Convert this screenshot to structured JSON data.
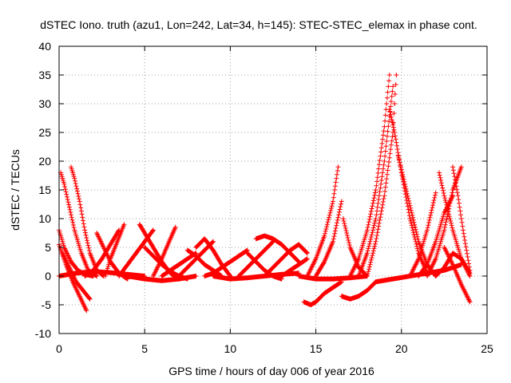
{
  "chart_data": {
    "type": "scatter",
    "title": "dSTEC Iono. truth (azu1, Lon=242, Lat=34, h=145): STEC-STEC_elemax in phase cont.",
    "xlabel": "GPS time / hours of day 006 of year 2016",
    "ylabel": "dSTEC  / TECUs",
    "xlim": [
      0,
      25
    ],
    "ylim": [
      -10,
      40
    ],
    "x_ticks": [
      "0",
      "5",
      "10",
      "15",
      "20",
      "25"
    ],
    "y_ticks": [
      "-10",
      "-5",
      "0",
      "5",
      "10",
      "15",
      "20",
      "25",
      "30",
      "35",
      "40"
    ],
    "grid": true,
    "marker": "+",
    "color": "#ff0000",
    "series": [
      {
        "x": [
          0.0,
          0.3,
          0.7,
          1.1,
          1.5,
          2.0
        ],
        "y": [
          8.0,
          5.0,
          2.5,
          1.0,
          0.3,
          0.0
        ]
      },
      {
        "x": [
          0.0,
          0.4,
          0.8,
          1.2,
          1.6
        ],
        "y": [
          5.5,
          2.0,
          -1.0,
          -3.5,
          -6.0
        ]
      },
      {
        "x": [
          0.1,
          0.3,
          0.6,
          0.9,
          1.3,
          1.7,
          2.2
        ],
        "y": [
          18.0,
          16.0,
          12.0,
          8.0,
          4.0,
          1.0,
          0.0
        ]
      },
      {
        "x": [
          0.7,
          0.9,
          1.2,
          1.5,
          1.8,
          2.2,
          2.6
        ],
        "y": [
          19.0,
          17.0,
          13.0,
          8.0,
          4.0,
          1.0,
          0.0
        ]
      },
      {
        "x": [
          0.2,
          0.6,
          1.0,
          1.4,
          1.8
        ],
        "y": [
          4.0,
          1.5,
          -1.0,
          -2.5,
          -4.0
        ]
      },
      {
        "x": [
          0.0,
          1.0,
          2.0,
          3.0,
          4.0,
          5.0
        ],
        "y": [
          0.0,
          0.5,
          0.8,
          0.6,
          0.3,
          0.0
        ]
      },
      {
        "x": [
          1.5,
          2.0,
          2.5,
          3.0,
          3.5
        ],
        "y": [
          0.0,
          1.0,
          3.0,
          5.5,
          8.0
        ]
      },
      {
        "x": [
          2.2,
          2.6,
          3.0,
          3.5,
          4.0
        ],
        "y": [
          7.5,
          5.0,
          2.5,
          0.5,
          -0.5
        ]
      },
      {
        "x": [
          2.7,
          3.0,
          3.4,
          3.8
        ],
        "y": [
          0.0,
          3.0,
          6.0,
          9.0
        ]
      },
      {
        "x": [
          3.5,
          4.0,
          4.5,
          5.0,
          5.5
        ],
        "y": [
          0.0,
          2.0,
          4.0,
          6.0,
          8.0
        ]
      },
      {
        "x": [
          4.7,
          5.0,
          5.5,
          6.0,
          6.5,
          7.0
        ],
        "y": [
          9.0,
          7.5,
          5.0,
          2.5,
          0.5,
          -0.5
        ]
      },
      {
        "x": [
          5.0,
          5.5,
          6.0,
          6.5,
          7.0,
          7.5
        ],
        "y": [
          5.0,
          3.5,
          2.0,
          0.8,
          0.0,
          -0.5
        ]
      },
      {
        "x": [
          4.0,
          5.0,
          6.0,
          7.0,
          8.0
        ],
        "y": [
          0.0,
          -0.5,
          -0.8,
          -0.5,
          0.0
        ]
      },
      {
        "x": [
          5.5,
          6.0,
          6.5,
          6.8
        ],
        "y": [
          0.0,
          3.0,
          6.5,
          8.5
        ]
      },
      {
        "x": [
          6.0,
          6.5,
          7.0,
          7.5,
          8.0
        ],
        "y": [
          0.0,
          1.0,
          2.0,
          3.0,
          4.0
        ]
      },
      {
        "x": [
          7.0,
          7.5,
          8.0,
          8.5,
          9.0
        ],
        "y": [
          0.0,
          1.5,
          3.0,
          4.5,
          6.0
        ]
      },
      {
        "x": [
          7.5,
          8.0,
          8.5,
          9.0,
          9.5
        ],
        "y": [
          4.5,
          3.5,
          2.0,
          1.0,
          0.0
        ]
      },
      {
        "x": [
          8.0,
          8.5,
          9.0,
          9.5,
          10.0
        ],
        "y": [
          5.0,
          6.5,
          4.5,
          2.0,
          0.0
        ]
      },
      {
        "x": [
          8.5,
          9.0,
          9.5,
          10.0,
          10.5,
          11.0
        ],
        "y": [
          0.0,
          0.5,
          1.5,
          2.5,
          3.5,
          4.5
        ]
      },
      {
        "x": [
          9.0,
          10.0,
          11.0,
          12.0,
          13.0,
          14.0
        ],
        "y": [
          0.0,
          -0.5,
          -0.3,
          0.0,
          0.3,
          0.5
        ]
      },
      {
        "x": [
          10.5,
          11.0,
          11.5,
          12.0,
          12.5
        ],
        "y": [
          0.0,
          1.5,
          3.0,
          4.5,
          6.0
        ]
      },
      {
        "x": [
          11.0,
          11.5,
          12.0,
          12.5,
          13.0
        ],
        "y": [
          4.0,
          2.5,
          1.0,
          0.0,
          -0.5
        ]
      },
      {
        "x": [
          11.5,
          12.0,
          12.5,
          13.0,
          13.5,
          14.0
        ],
        "y": [
          6.5,
          7.0,
          6.5,
          5.5,
          4.0,
          2.5
        ]
      },
      {
        "x": [
          12.0,
          12.5,
          13.0,
          13.5,
          14.0,
          14.5
        ],
        "y": [
          0.0,
          1.5,
          3.0,
          4.5,
          5.5,
          4.0
        ]
      },
      {
        "x": [
          13.0,
          13.5,
          14.0,
          14.5
        ],
        "y": [
          0.0,
          1.0,
          2.0,
          3.0
        ]
      },
      {
        "x": [
          14.3,
          14.7,
          15.0,
          15.5,
          16.0,
          16.5
        ],
        "y": [
          -4.5,
          -5.0,
          -4.5,
          -3.0,
          -2.0,
          -1.0
        ]
      },
      {
        "x": [
          14.5,
          15.0,
          15.5,
          16.0,
          16.3
        ],
        "y": [
          0.0,
          3.0,
          7.0,
          13.0,
          19.0
        ]
      },
      {
        "x": [
          15.0,
          15.5,
          16.0,
          16.5
        ],
        "y": [
          0.0,
          2.5,
          6.0,
          13.0
        ]
      },
      {
        "x": [
          14.0,
          15.0,
          16.0,
          17.0,
          18.0
        ],
        "y": [
          0.0,
          -0.5,
          -0.5,
          -0.3,
          0.0
        ]
      },
      {
        "x": [
          16.5,
          17.0,
          17.5,
          18.0,
          18.5
        ],
        "y": [
          -3.5,
          -4.0,
          -3.5,
          -2.5,
          -1.0
        ]
      },
      {
        "x": [
          16.6,
          17.0,
          17.5,
          18.0
        ],
        "y": [
          10.0,
          5.0,
          1.5,
          0.0
        ]
      },
      {
        "x": [
          17.0,
          17.5,
          18.0,
          18.5,
          19.0,
          19.3
        ],
        "y": [
          0.0,
          3.0,
          8.0,
          15.0,
          26.0,
          35.0
        ]
      },
      {
        "x": [
          17.5,
          18.0,
          18.5,
          19.0,
          19.5
        ],
        "y": [
          0.0,
          4.0,
          10.0,
          20.0,
          33.0
        ]
      },
      {
        "x": [
          18.0,
          18.5,
          19.0,
          19.5,
          19.7
        ],
        "y": [
          0.0,
          6.0,
          14.0,
          25.0,
          35.0
        ]
      },
      {
        "x": [
          19.3,
          19.6,
          20.0,
          20.5,
          21.0,
          21.5
        ],
        "y": [
          29.0,
          25.0,
          18.0,
          10.0,
          4.0,
          0.5
        ]
      },
      {
        "x": [
          19.8,
          20.2,
          20.6,
          21.0,
          21.5,
          22.0
        ],
        "y": [
          21.0,
          16.0,
          11.0,
          6.0,
          2.0,
          0.0
        ]
      },
      {
        "x": [
          20.5,
          21.0,
          21.5,
          22.0
        ],
        "y": [
          0.0,
          3.0,
          8.0,
          14.5
        ]
      },
      {
        "x": [
          21.0,
          21.5,
          22.0,
          22.5,
          23.0
        ],
        "y": [
          0.0,
          2.0,
          6.0,
          11.0,
          14.0
        ]
      },
      {
        "x": [
          21.5,
          22.0,
          22.5,
          23.0,
          23.5
        ],
        "y": [
          0.0,
          3.0,
          8.0,
          15.0,
          19.0
        ]
      },
      {
        "x": [
          22.2,
          22.5,
          23.0,
          23.5,
          24.0
        ],
        "y": [
          18.0,
          14.0,
          8.0,
          3.0,
          0.0
        ]
      },
      {
        "x": [
          23.0,
          23.3,
          23.6,
          24.0
        ],
        "y": [
          19.0,
          14.0,
          8.0,
          1.0
        ]
      },
      {
        "x": [
          22.5,
          23.0,
          23.5,
          24.0
        ],
        "y": [
          5.0,
          2.0,
          -1.5,
          -4.5
        ]
      },
      {
        "x": [
          18.5,
          19.5,
          20.5,
          21.5,
          22.5,
          23.5
        ],
        "y": [
          -1.0,
          -0.5,
          0.0,
          0.5,
          1.0,
          2.0
        ]
      },
      {
        "x": [
          22.0,
          22.5,
          23.0,
          23.5,
          24.0
        ],
        "y": [
          0.0,
          1.5,
          4.0,
          3.0,
          0.5
        ]
      }
    ]
  }
}
